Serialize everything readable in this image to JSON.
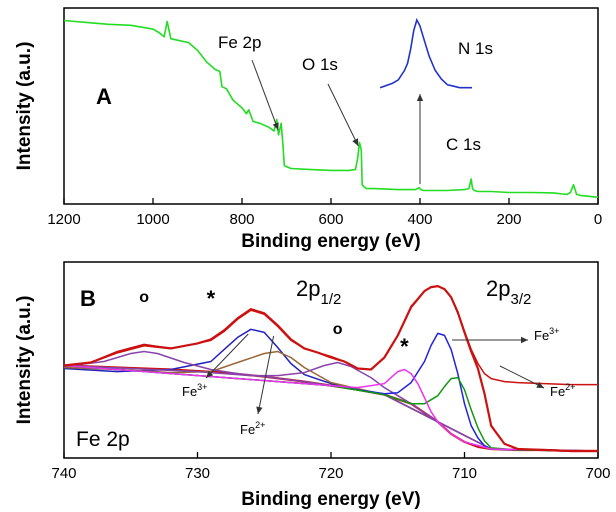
{
  "chart_data": [
    {
      "type": "line",
      "panel_label": "A",
      "xlabel": "Binding energy (eV)",
      "ylabel": "Intensity (a.u.)",
      "xlim": [
        1200,
        0
      ],
      "x_reversed": true,
      "xticks": [
        1200,
        1000,
        800,
        600,
        400,
        200,
        0
      ],
      "y_ticks_shown": false,
      "grid": false,
      "series": [
        {
          "color": "#22dd22",
          "x": [
            1200,
            1150,
            1100,
            1050,
            1000,
            985,
            975,
            968,
            960,
            940,
            920,
            900,
            880,
            860,
            850,
            845,
            835,
            820,
            800,
            790,
            785,
            775,
            760,
            740,
            728,
            722,
            718,
            712,
            708,
            705,
            690,
            650,
            600,
            560,
            545,
            540,
            536,
            532,
            530,
            526,
            520,
            500,
            450,
            410,
            402,
            398,
            392,
            380,
            340,
            300,
            290,
            285,
            282,
            278,
            270,
            240,
            200,
            150,
            100,
            80,
            70,
            62,
            55,
            48,
            40,
            20,
            0
          ],
          "y": [
            93.5,
            92.5,
            91.5,
            91,
            89,
            87,
            85,
            93,
            84,
            83,
            82,
            78,
            72,
            68,
            67,
            59,
            58,
            52,
            48,
            45,
            47,
            41,
            40,
            38,
            36,
            42,
            34,
            40,
            29,
            18,
            16.5,
            16,
            15.5,
            15.5,
            16,
            22,
            30,
            26,
            8,
            7,
            6,
            6,
            5.5,
            5.5,
            6.5,
            5.5,
            5,
            5,
            5,
            5.5,
            6,
            11,
            6,
            5,
            4.5,
            4.5,
            4,
            4,
            3.8,
            3.2,
            3,
            4,
            8,
            3,
            2.5,
            2,
            1.5
          ]
        }
      ],
      "annotations": [
        {
          "text": "Fe 2p",
          "arrow_to_x": 712
        },
        {
          "text": "O 1s",
          "arrow_to_x": 532
        },
        {
          "text": "C 1s",
          "arrow_to_x": 400
        }
      ],
      "inset": {
        "label": "N 1s",
        "color": "#2233cc",
        "x": [
          410,
          406,
          404,
          402,
          401,
          400,
          399,
          398,
          397,
          396,
          394,
          392,
          390,
          388,
          386,
          384,
          380
        ],
        "y": [
          6,
          12,
          17,
          30,
          40,
          60,
          85,
          100,
          92,
          78,
          50,
          30,
          18,
          10,
          8,
          6,
          6
        ]
      }
    },
    {
      "type": "line",
      "panel_label": "B",
      "corner_label": "Fe 2p",
      "xlabel": "Binding energy (eV)",
      "ylabel": "Intensity (a.u.)",
      "xlim": [
        740,
        700
      ],
      "x_reversed": true,
      "xticks": [
        740,
        730,
        720,
        710,
        700
      ],
      "y_ticks_shown": false,
      "grid": false,
      "peak_labels": [
        {
          "text": "2p",
          "subscript": "1/2"
        },
        {
          "text": "2p",
          "subscript": "3/2"
        }
      ],
      "markers": [
        {
          "text": "o",
          "x": 734
        },
        {
          "text": "*",
          "x": 729
        },
        {
          "text": "o",
          "x": 719.5
        },
        {
          "text": "*",
          "x": 714.5
        }
      ],
      "component_labels": [
        {
          "text": "Fe",
          "superscript": "3+",
          "x": 726.2
        },
        {
          "text": "Fe",
          "superscript": "2+",
          "x": 724.3
        },
        {
          "text": "Fe",
          "superscript": "3+",
          "x": 712.1
        },
        {
          "text": "Fe",
          "superscript": "2+",
          "x": 711
        }
      ],
      "series": [
        {
          "role": "raw-data",
          "color": "#cc1111",
          "x": [
            740,
            738,
            736,
            734,
            732,
            730,
            729,
            728,
            727,
            726,
            725,
            724,
            723,
            722,
            721,
            720,
            719,
            718,
            717,
            716,
            715,
            714,
            713,
            712.5,
            712,
            711.5,
            711,
            710.5,
            710,
            709.5,
            709,
            708.5,
            708,
            707,
            706,
            704,
            702,
            700
          ],
          "y": [
            1.2,
            1.5,
            2.6,
            3.3,
            2.9,
            3.4,
            3.7,
            4.6,
            5.8,
            6.7,
            6.3,
            5.1,
            3.7,
            2.9,
            2.5,
            2.1,
            1.6,
            0.9,
            0.8,
            2.0,
            4.2,
            7.1,
            8.6,
            9.0,
            9.1,
            8.8,
            8.0,
            6.4,
            4.6,
            2.8,
            1.4,
            0.4,
            -0.1,
            -0.4,
            -0.5,
            -0.6,
            -0.7,
            -0.7
          ]
        },
        {
          "role": "shirley-background",
          "color": "#cc1111",
          "x": [
            740,
            736,
            732,
            728,
            725,
            722,
            720,
            718,
            716,
            714,
            712,
            711,
            710,
            709,
            708,
            706,
            704,
            702,
            700
          ],
          "y": [
            1.2,
            1.0,
            0.8,
            0.5,
            0.1,
            -0.4,
            -0.8,
            -1.2,
            -1.7,
            -2.6,
            -4.4,
            -5.6,
            -6.4,
            -6.9,
            -7.1,
            -7.2,
            -7.2,
            -7.3,
            -7.3
          ]
        },
        {
          "role": "Fe3+ 2p1/2",
          "color": "#2222bb",
          "x": [
            740,
            736,
            732,
            729,
            728,
            727,
            726,
            725,
            724,
            723,
            722,
            720,
            716,
            712,
            708,
            704,
            700
          ],
          "y": [
            0.9,
            0.6,
            0.8,
            1.6,
            2.8,
            4.0,
            4.8,
            4.5,
            3.0,
            1.4,
            0.3,
            -0.6,
            -1.7,
            -4.4,
            -7.1,
            -7.2,
            -7.3
          ]
        },
        {
          "role": "Fe2+ 2p1/2",
          "color": "#996633",
          "x": [
            740,
            736,
            732,
            729,
            727,
            725,
            724,
            723,
            722,
            720,
            716,
            712,
            708,
            700
          ],
          "y": [
            1.0,
            0.8,
            0.5,
            0.6,
            1.5,
            2.4,
            2.6,
            2.0,
            1.0,
            -0.5,
            -1.7,
            -4.4,
            -7.1,
            -7.3
          ]
        },
        {
          "role": "satellite-1",
          "color": "#8844aa",
          "x": [
            740,
            737,
            735,
            734,
            733,
            731,
            729,
            727,
            725,
            722,
            720,
            716,
            712,
            708,
            700
          ],
          "y": [
            1.1,
            1.6,
            2.4,
            2.6,
            2.4,
            1.5,
            0.8,
            0.4,
            0.1,
            -0.4,
            -0.8,
            -1.7,
            -4.4,
            -7.1,
            -7.3
          ]
        },
        {
          "role": "satellite-2",
          "color": "#8844aa",
          "x": [
            740,
            730,
            726,
            724,
            722,
            720.5,
            719.5,
            718.5,
            717,
            716,
            715,
            714,
            712,
            708,
            700
          ],
          "y": [
            1.2,
            0.6,
            0.2,
            0.2,
            0.5,
            1.2,
            1.5,
            1.1,
            0.0,
            -1.0,
            -1.8,
            -2.6,
            -4.4,
            -7.1,
            -7.3
          ]
        },
        {
          "role": "Fe3+ 2p3/2",
          "color": "#2222dd",
          "x": [
            740,
            720,
            716,
            715,
            714,
            713,
            712.5,
            712,
            711.5,
            711,
            710.5,
            710,
            709.5,
            709,
            708.5,
            708,
            706,
            700
          ],
          "y": [
            1.2,
            -0.8,
            -1.6,
            -1.5,
            -0.5,
            1.6,
            3.2,
            4.4,
            4.2,
            2.8,
            0.4,
            -2.6,
            -4.8,
            -6.0,
            -6.8,
            -7.1,
            -7.2,
            -7.3
          ]
        },
        {
          "role": "Fe2+ 2p3/2",
          "color": "#119911",
          "x": [
            740,
            720,
            716,
            714,
            713,
            712,
            711.5,
            711,
            710.5,
            710,
            709.5,
            709,
            708.5,
            708,
            706,
            700
          ],
          "y": [
            1.2,
            -0.8,
            -1.7,
            -2.6,
            -2.6,
            -1.8,
            -0.9,
            -0.1,
            0.0,
            -1.2,
            -3.2,
            -5.0,
            -6.3,
            -7.0,
            -7.2,
            -7.3
          ]
        },
        {
          "role": "satellite-3",
          "color": "#ee33ee",
          "x": [
            740,
            720,
            718,
            716,
            715.5,
            715,
            714.5,
            714,
            713.5,
            713,
            712.5,
            712,
            711,
            710,
            708,
            700
          ],
          "y": [
            1.2,
            -0.8,
            -1.0,
            -0.6,
            0.0,
            0.6,
            0.8,
            0.4,
            -0.6,
            -2.0,
            -3.4,
            -4.4,
            -5.6,
            -6.4,
            -7.1,
            -7.3
          ]
        },
        {
          "role": "fitted-envelope",
          "color": "#cc1111",
          "x": [
            740,
            738,
            736,
            734,
            732,
            730,
            729,
            728,
            727,
            726,
            725,
            724,
            723,
            722,
            721,
            720,
            719,
            718,
            717,
            716,
            715,
            714,
            713,
            712.5,
            712,
            711.5,
            711,
            710.5,
            710,
            709.5,
            709,
            708.5,
            708,
            707,
            706,
            704,
            702,
            700
          ],
          "y": [
            1.2,
            1.5,
            2.5,
            3.2,
            2.9,
            3.4,
            3.8,
            4.7,
            5.9,
            6.8,
            6.4,
            5.2,
            3.8,
            2.9,
            2.5,
            2.0,
            1.6,
            0.9,
            0.8,
            2.0,
            4.2,
            7.0,
            8.6,
            9.0,
            9.1,
            8.8,
            8.0,
            6.5,
            4.5,
            2.6,
            0.9,
            -1.6,
            -4.8,
            -6.6,
            -7.1,
            -7.2,
            -7.3,
            -7.3
          ]
        }
      ]
    }
  ]
}
